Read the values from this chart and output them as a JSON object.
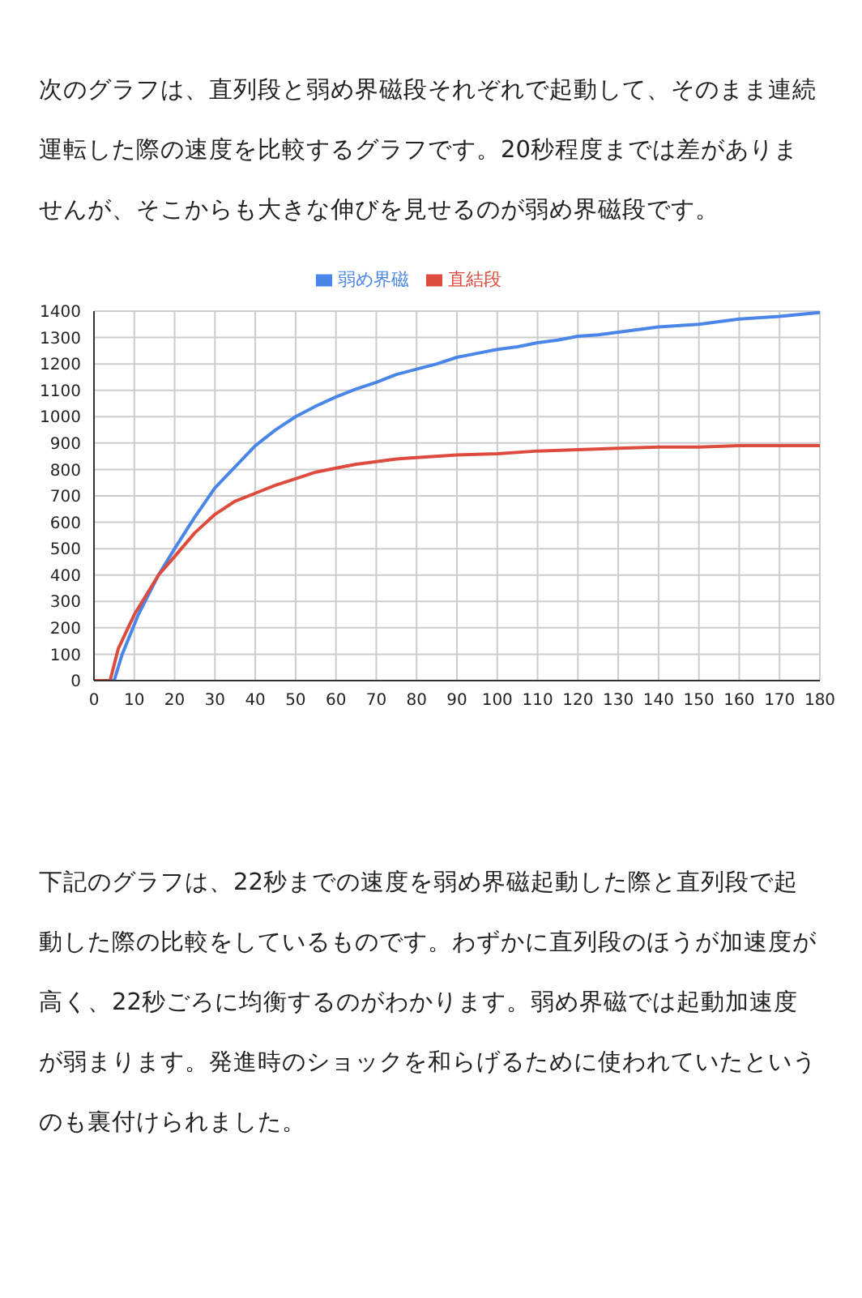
{
  "chart_data": {
    "type": "line",
    "annotations": [
      "次のグラフは、直列段と弱め界磁段それぞれで起動して、そのまま連続運転した際の速度を比較するグラフです。20秒程度までは差がありませんが、そこからも大きな伸びを見せるのが弱め界磁段です。",
      "下記のグラフは、22秒までの速度を弱め界磁起動した際と直列段で起動した際の比較をしているものです。わずかに直列段のほうが加速度が高く、22秒ごろに均衡するのがわかります。弱め界磁では起動加速度が弱まります。発進時のショックを和らげるために使われていたというのも裏付けられました。"
    ],
    "xlim": [
      0,
      180
    ],
    "xticks": [
      0,
      10,
      20,
      30,
      40,
      50,
      60,
      70,
      80,
      90,
      100,
      110,
      120,
      130,
      140,
      150,
      160,
      170,
      180
    ],
    "ylim": [
      0,
      1400
    ],
    "yticks": [
      0,
      100,
      200,
      300,
      400,
      500,
      600,
      700,
      800,
      900,
      1000,
      1100,
      1200,
      1300,
      1400
    ],
    "grid": true,
    "legend": "top",
    "marker": "none",
    "line_style": "solid",
    "series": [
      {
        "name": "弱め界磁",
        "color": "#4a86e8",
        "x": [
          0,
          5,
          7,
          11,
          16,
          20,
          25,
          30,
          35,
          40,
          45,
          50,
          55,
          60,
          65,
          70,
          75,
          80,
          85,
          90,
          95,
          100,
          105,
          110,
          115,
          120,
          125,
          130,
          135,
          140,
          150,
          155,
          160,
          170,
          180
        ],
        "values": [
          0,
          0,
          100,
          250,
          400,
          500,
          620,
          730,
          810,
          890,
          950,
          1000,
          1040,
          1075,
          1105,
          1130,
          1160,
          1180,
          1200,
          1225,
          1240,
          1255,
          1265,
          1280,
          1290,
          1305,
          1310,
          1320,
          1330,
          1340,
          1350,
          1360,
          1370,
          1380,
          1395
        ]
      },
      {
        "name": "直結段",
        "color": "#dd4b3e",
        "x": [
          0,
          4,
          6,
          10,
          16,
          20,
          25,
          30,
          35,
          40,
          45,
          50,
          55,
          60,
          65,
          70,
          75,
          80,
          90,
          100,
          110,
          120,
          130,
          140,
          150,
          160,
          170,
          180
        ],
        "values": [
          0,
          0,
          120,
          250,
          400,
          470,
          560,
          630,
          680,
          710,
          740,
          765,
          790,
          805,
          820,
          830,
          840,
          845,
          855,
          860,
          870,
          875,
          880,
          885,
          885,
          890,
          890,
          890
        ]
      }
    ]
  }
}
